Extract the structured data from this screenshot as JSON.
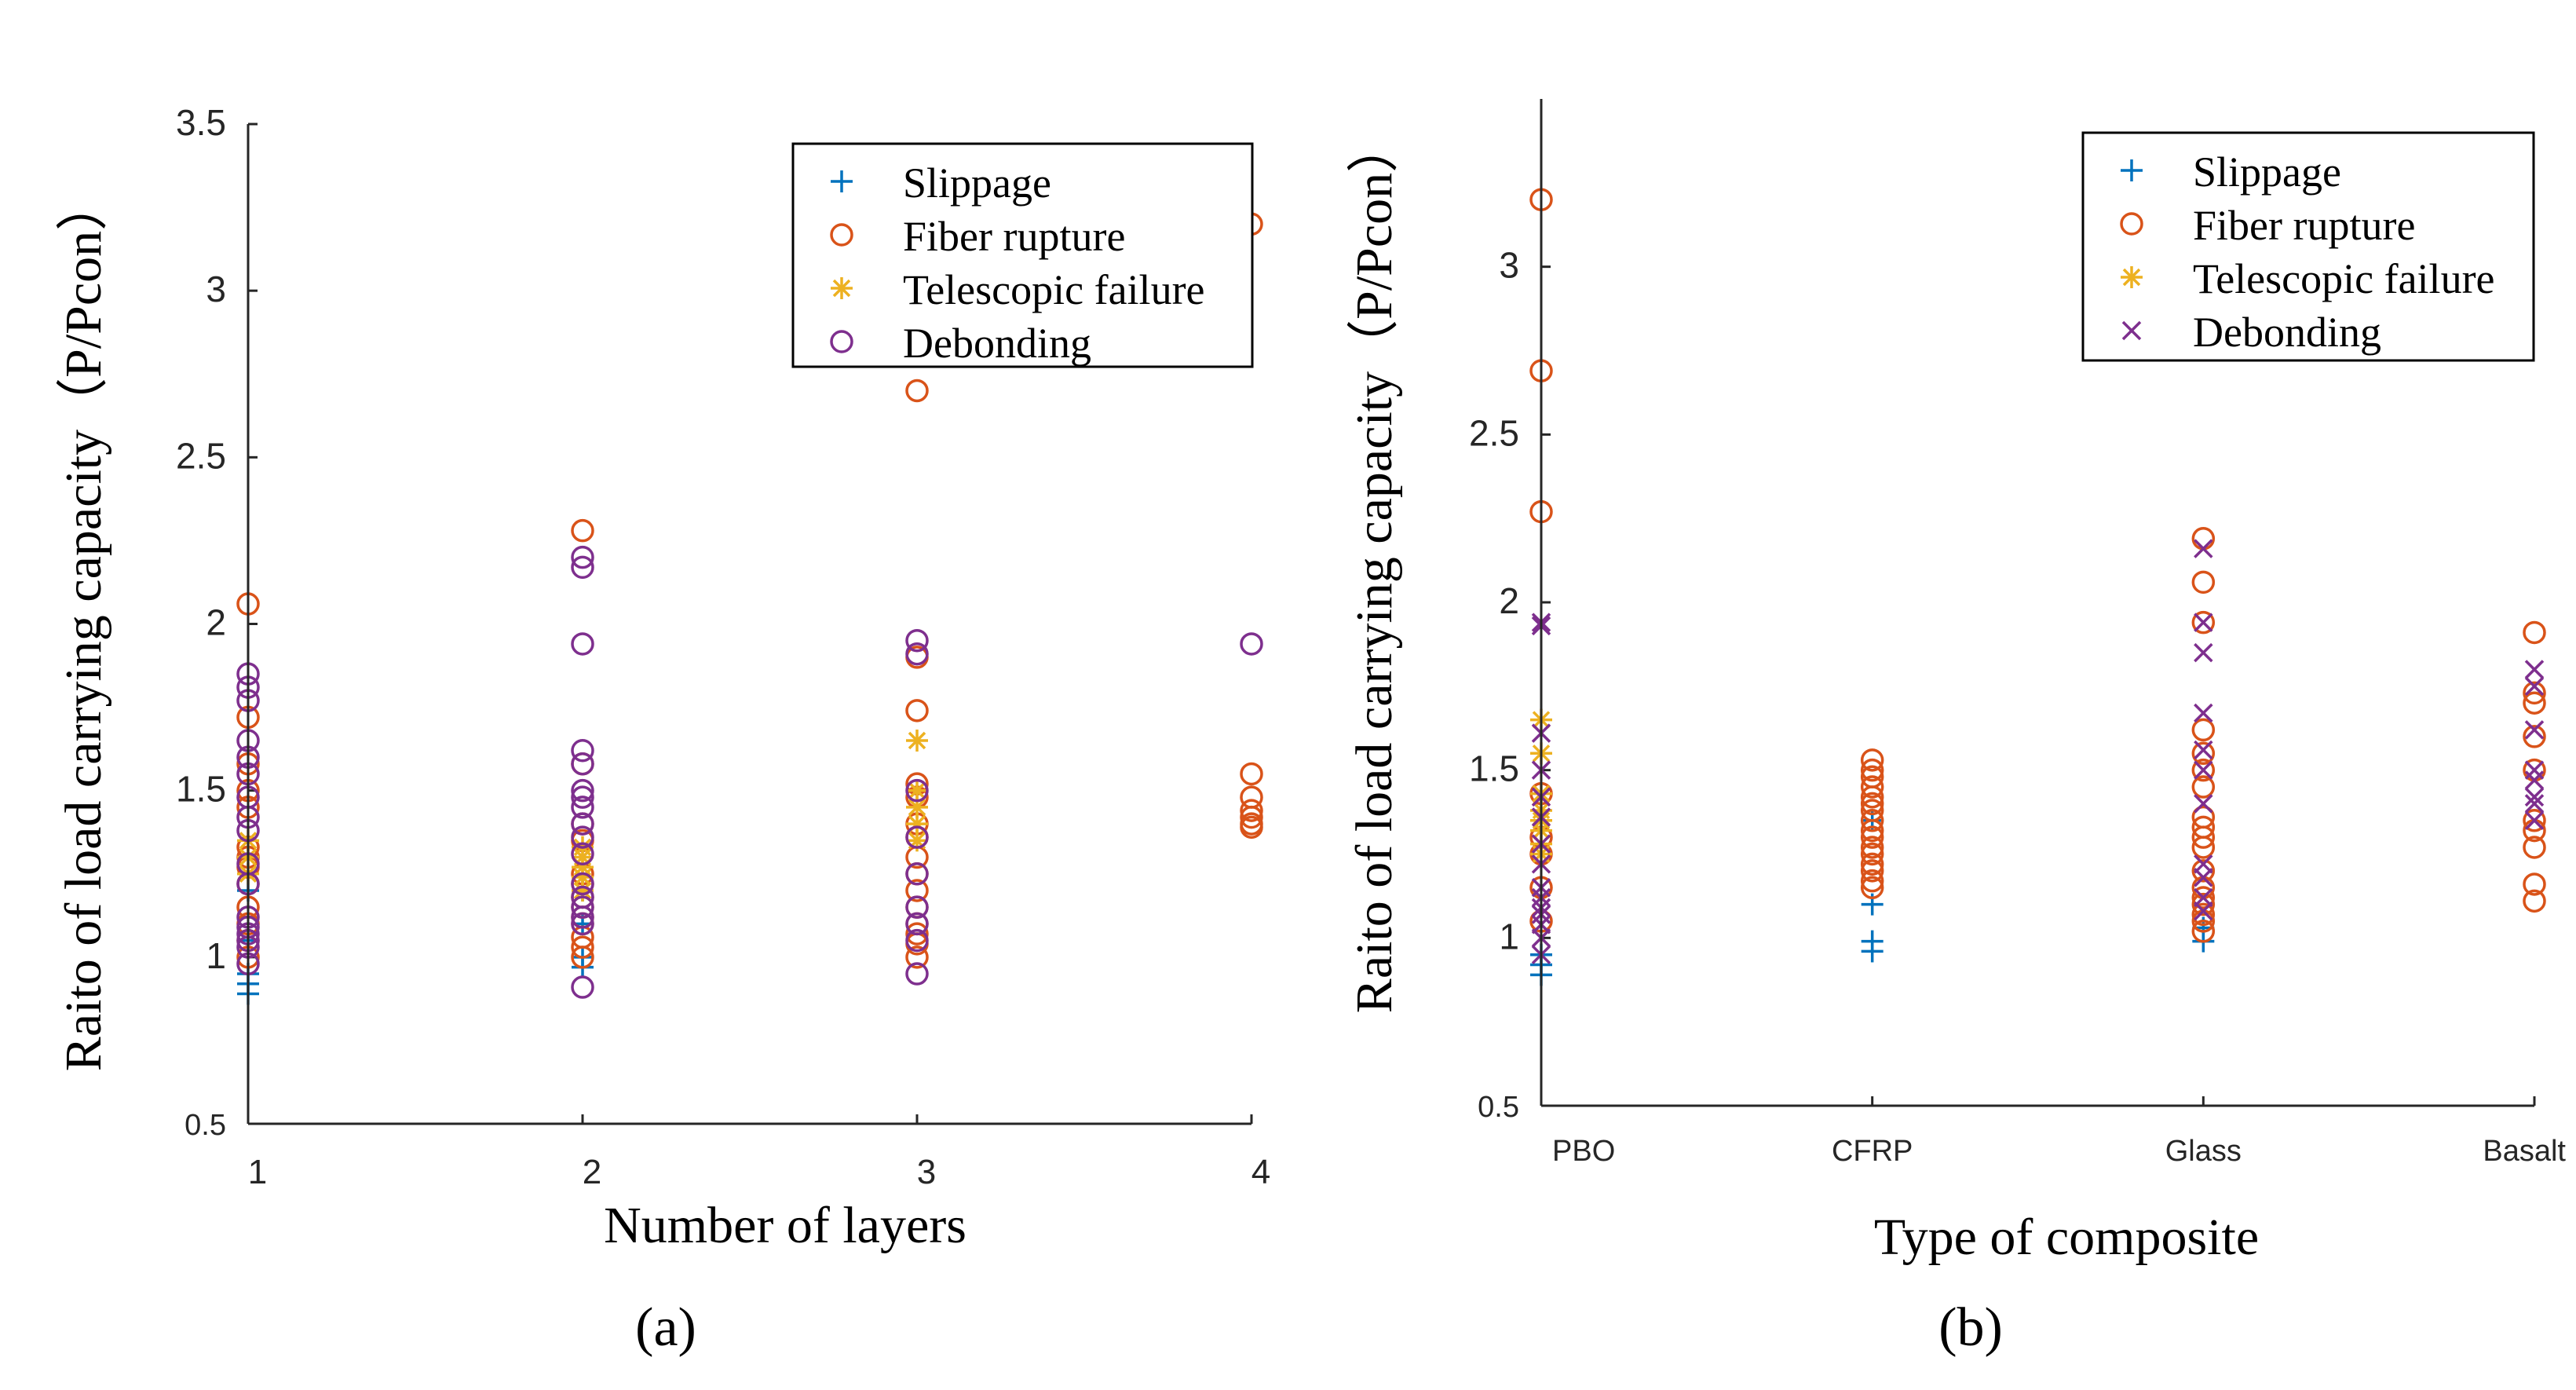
{
  "chart_data": [
    {
      "type": "scatter",
      "panel_label": "(a)",
      "xlabel": "Number of layers",
      "ylabel": "Raito of load carrying capacity（P/Pcon）",
      "xlim": [
        1,
        4
      ],
      "ylim": [
        0.5,
        3.5
      ],
      "xticks": [
        "1",
        "2",
        "3",
        "4"
      ],
      "yticks": [
        "0.5",
        "1",
        "1.5",
        "2",
        "2.5",
        "3",
        "3.5"
      ],
      "legend": [
        "Slippage",
        "Fiber rupture",
        "Telescopic failure",
        "Debonding"
      ],
      "legend_position": "top-right",
      "series": [
        {
          "name": "Slippage",
          "marker": "plus",
          "color": "#0072BD",
          "x": [
            1,
            1,
            1,
            1,
            1,
            2,
            2,
            2,
            2
          ],
          "y": [
            0.89,
            0.92,
            0.95,
            1.05,
            1.2,
            0.97,
            1.0,
            1.1,
            1.2
          ]
        },
        {
          "name": "Fiber rupture",
          "marker": "circle",
          "color": "#D95319",
          "x": [
            1,
            1,
            1,
            1,
            1,
            1,
            1,
            1,
            1,
            1,
            1,
            1,
            1,
            2,
            2,
            2,
            2,
            2,
            2,
            2,
            2,
            2,
            2,
            2,
            2,
            2,
            3,
            3,
            3,
            3,
            3,
            3,
            3,
            3,
            3,
            3,
            3,
            3,
            3,
            3,
            3,
            4,
            4,
            4,
            4,
            4,
            4,
            4
          ],
          "y": [
            2.06,
            1.72,
            1.58,
            1.5,
            1.45,
            1.33,
            1.3,
            1.27,
            1.22,
            1.15,
            1.1,
            1.05,
            1.0,
            2.28,
            1.58,
            1.4,
            1.35,
            1.25,
            1.22,
            1.18,
            1.15,
            1.12,
            1.1,
            1.06,
            1.03,
            1.0,
            2.7,
            1.9,
            1.74,
            1.52,
            1.48,
            1.4,
            1.36,
            1.3,
            1.25,
            1.2,
            1.15,
            1.1,
            1.07,
            1.04,
            1.0,
            3.2,
            1.55,
            1.48,
            1.44,
            1.42,
            1.4,
            1.39
          ]
        },
        {
          "name": "Telescopic failure",
          "marker": "asterisk",
          "color": "#EDB120",
          "x": [
            1,
            1,
            1,
            2,
            2,
            2,
            2,
            2,
            3,
            3,
            3,
            3,
            3
          ],
          "y": [
            1.35,
            1.3,
            1.25,
            1.33,
            1.3,
            1.27,
            1.24,
            1.2,
            1.65,
            1.5,
            1.45,
            1.4,
            1.35
          ]
        },
        {
          "name": "Debonding",
          "marker": "circle",
          "color": "#7E2F8E",
          "x": [
            1,
            1,
            1,
            1,
            1,
            1,
            1,
            1,
            1,
            1,
            1,
            1,
            1,
            1,
            1,
            1,
            1,
            2,
            2,
            2,
            2,
            2,
            2,
            2,
            2,
            2,
            2,
            2,
            2,
            2,
            2,
            2,
            2,
            2,
            3,
            3,
            3,
            3,
            3,
            3,
            3,
            3,
            3,
            4
          ],
          "y": [
            1.85,
            1.81,
            1.77,
            1.65,
            1.6,
            1.55,
            1.48,
            1.42,
            1.38,
            1.28,
            1.22,
            1.12,
            1.09,
            1.07,
            1.05,
            1.03,
            0.98,
            2.2,
            2.17,
            1.94,
            1.62,
            1.58,
            1.5,
            1.48,
            1.45,
            1.4,
            1.36,
            1.31,
            1.22,
            1.18,
            1.15,
            1.12,
            1.1,
            0.91,
            1.95,
            1.91,
            1.5,
            1.36,
            1.25,
            1.15,
            1.1,
            1.05,
            0.95,
            1.94
          ]
        }
      ]
    },
    {
      "type": "scatter",
      "panel_label": "(b)",
      "xlabel": "Type of composite",
      "ylabel": "Raito of load carrying capacity（P/Pcon）",
      "categories": [
        "PBO",
        "CFRP",
        "Glass",
        "Basalt"
      ],
      "ylim": [
        0.5,
        3.5
      ],
      "yticks": [
        "0.5",
        "1",
        "1.5",
        "2",
        "2.5",
        "3"
      ],
      "legend": [
        "Slippage",
        "Fiber rupture",
        "Telescopic failure",
        "Debonding"
      ],
      "legend_position": "top-right",
      "series": [
        {
          "name": "Slippage",
          "marker": "plus",
          "color": "#0072BD",
          "x": [
            "PBO",
            "PBO",
            "PBO",
            "CFRP",
            "CFRP",
            "CFRP",
            "CFRP",
            "Glass",
            "Glass"
          ],
          "y": [
            0.89,
            0.92,
            0.95,
            0.96,
            0.99,
            1.1,
            1.35,
            0.99,
            1.03
          ]
        },
        {
          "name": "Fiber rupture",
          "marker": "circle",
          "color": "#D95319",
          "x": [
            "PBO",
            "PBO",
            "PBO",
            "PBO",
            "PBO",
            "PBO",
            "PBO",
            "PBO",
            "CFRP",
            "CFRP",
            "CFRP",
            "CFRP",
            "CFRP",
            "CFRP",
            "CFRP",
            "CFRP",
            "CFRP",
            "CFRP",
            "CFRP",
            "CFRP",
            "CFRP",
            "CFRP",
            "CFRP",
            "CFRP",
            "Glass",
            "Glass",
            "Glass",
            "Glass",
            "Glass",
            "Glass",
            "Glass",
            "Glass",
            "Glass",
            "Glass",
            "Glass",
            "Glass",
            "Glass",
            "Glass",
            "Glass",
            "Glass",
            "Glass",
            "Glass",
            "Basalt",
            "Basalt",
            "Basalt",
            "Basalt",
            "Basalt",
            "Basalt",
            "Basalt",
            "Basalt",
            "Basalt",
            "Basalt"
          ],
          "y": [
            3.2,
            2.69,
            2.27,
            1.43,
            1.3,
            1.25,
            1.15,
            1.05,
            1.53,
            1.5,
            1.48,
            1.45,
            1.42,
            1.4,
            1.38,
            1.35,
            1.32,
            1.3,
            1.27,
            1.25,
            1.22,
            1.2,
            1.17,
            1.15,
            2.19,
            2.06,
            1.94,
            1.62,
            1.55,
            1.5,
            1.45,
            1.36,
            1.33,
            1.3,
            1.27,
            1.2,
            1.15,
            1.12,
            1.1,
            1.07,
            1.05,
            1.02,
            1.91,
            1.73,
            1.7,
            1.6,
            1.5,
            1.35,
            1.32,
            1.27,
            1.16,
            1.11
          ]
        },
        {
          "name": "Telescopic failure",
          "marker": "asterisk",
          "color": "#EDB120",
          "x": [
            "PBO",
            "PBO",
            "PBO",
            "PBO",
            "PBO",
            "PBO",
            "PBO",
            "PBO"
          ],
          "y": [
            1.65,
            1.55,
            1.43,
            1.38,
            1.35,
            1.32,
            1.28,
            1.25
          ]
        },
        {
          "name": "Debonding",
          "marker": "x",
          "color": "#7E2F8E",
          "x": [
            "PBO",
            "PBO",
            "PBO",
            "PBO",
            "PBO",
            "PBO",
            "PBO",
            "PBO",
            "PBO",
            "PBO",
            "PBO",
            "PBO",
            "PBO",
            "PBO",
            "PBO",
            "Glass",
            "Glass",
            "Glass",
            "Glass",
            "Glass",
            "Glass",
            "Glass",
            "Glass",
            "Glass",
            "Glass",
            "Glass",
            "Basalt",
            "Basalt",
            "Basalt",
            "Basalt",
            "Basalt",
            "Basalt",
            "Basalt",
            "Basalt"
          ],
          "y": [
            1.94,
            1.93,
            1.61,
            1.5,
            1.42,
            1.36,
            1.28,
            1.22,
            1.15,
            1.12,
            1.09,
            1.07,
            1.04,
            1.0,
            0.95,
            2.16,
            1.94,
            1.85,
            1.67,
            1.56,
            1.5,
            1.4,
            1.22,
            1.18,
            1.12,
            1.08,
            1.8,
            1.75,
            1.62,
            1.5,
            1.47,
            1.42,
            1.4,
            1.35
          ]
        }
      ]
    }
  ]
}
